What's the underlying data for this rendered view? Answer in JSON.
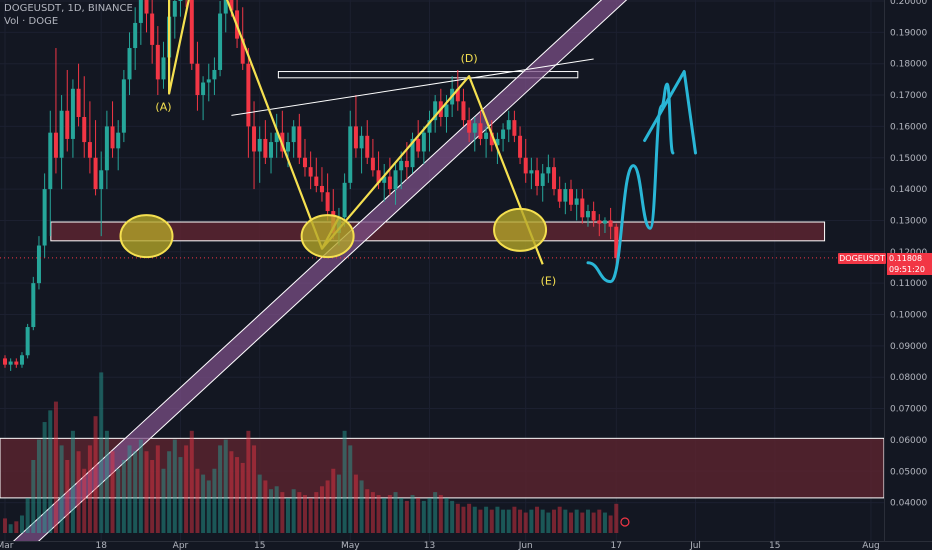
{
  "header": {
    "symbol_line": "DOGEUSDT, 1D, BINANCE",
    "volume_line": "Vol · DOGE"
  },
  "price_axis": {
    "symbol_tag": "DOGEUSDT",
    "last_price": "0.11808",
    "countdown": "09:51:20"
  },
  "colors": {
    "background": "#131722",
    "up": "#26a69a",
    "down": "#f23645",
    "support_zone": "#5c2430",
    "channel": "#7b4f86",
    "pattern_line": "#f5e050",
    "projection": "#29b6d6"
  },
  "chart_data": {
    "type": "candlestick",
    "ylim": [
      0.035,
      0.2005
    ],
    "y_tick_labels": [
      "0.20000",
      "0.19000",
      "0.18000",
      "0.17000",
      "0.16000",
      "0.15000",
      "0.14000",
      "0.13000",
      "0.12000",
      "0.11000",
      "0.10000",
      "0.09000",
      "0.08000",
      "0.07000",
      "0.06000",
      "0.05000",
      "0.04000"
    ],
    "y_ticks": [
      0.2,
      0.19,
      0.18,
      0.17,
      0.16,
      0.15,
      0.14,
      0.13,
      0.12,
      0.11,
      0.1,
      0.09,
      0.08,
      0.07,
      0.06,
      0.05,
      0.04
    ],
    "x_tick_labels": [
      "Mar",
      "18",
      "Apr",
      "15",
      "May",
      "13",
      "Jun",
      "17",
      "Jul",
      "15",
      "Aug"
    ],
    "x_ticks_day": [
      0,
      17,
      31,
      45,
      61,
      75,
      92,
      108,
      122,
      136,
      153
    ],
    "last_day": 109,
    "ohlc": [
      [
        0.086,
        0.087,
        0.083,
        0.084
      ],
      [
        0.084,
        0.086,
        0.082,
        0.085
      ],
      [
        0.085,
        0.086,
        0.083,
        0.084
      ],
      [
        0.084,
        0.088,
        0.083,
        0.087
      ],
      [
        0.087,
        0.097,
        0.086,
        0.096
      ],
      [
        0.096,
        0.112,
        0.095,
        0.11
      ],
      [
        0.11,
        0.125,
        0.108,
        0.122
      ],
      [
        0.122,
        0.145,
        0.118,
        0.14
      ],
      [
        0.14,
        0.165,
        0.125,
        0.158
      ],
      [
        0.158,
        0.185,
        0.145,
        0.15
      ],
      [
        0.15,
        0.17,
        0.14,
        0.165
      ],
      [
        0.165,
        0.178,
        0.152,
        0.156
      ],
      [
        0.156,
        0.175,
        0.15,
        0.172
      ],
      [
        0.172,
        0.18,
        0.16,
        0.163
      ],
      [
        0.163,
        0.176,
        0.15,
        0.155
      ],
      [
        0.155,
        0.168,
        0.145,
        0.15
      ],
      [
        0.15,
        0.162,
        0.138,
        0.14
      ],
      [
        0.14,
        0.152,
        0.125,
        0.146
      ],
      [
        0.146,
        0.165,
        0.14,
        0.16
      ],
      [
        0.16,
        0.168,
        0.15,
        0.153
      ],
      [
        0.153,
        0.162,
        0.146,
        0.158
      ],
      [
        0.158,
        0.178,
        0.155,
        0.175
      ],
      [
        0.175,
        0.19,
        0.17,
        0.185
      ],
      [
        0.185,
        0.198,
        0.178,
        0.193
      ],
      [
        0.193,
        0.205,
        0.186,
        0.203
      ],
      [
        0.203,
        0.21,
        0.19,
        0.196
      ],
      [
        0.196,
        0.203,
        0.18,
        0.186
      ],
      [
        0.186,
        0.192,
        0.17,
        0.175
      ],
      [
        0.175,
        0.187,
        0.172,
        0.182
      ],
      [
        0.182,
        0.198,
        0.178,
        0.195
      ],
      [
        0.195,
        0.205,
        0.188,
        0.2
      ],
      [
        0.2,
        0.21,
        0.195,
        0.206
      ],
      [
        0.206,
        0.212,
        0.198,
        0.202
      ],
      [
        0.202,
        0.208,
        0.178,
        0.18
      ],
      [
        0.18,
        0.187,
        0.165,
        0.17
      ],
      [
        0.17,
        0.176,
        0.162,
        0.174
      ],
      [
        0.174,
        0.18,
        0.168,
        0.175
      ],
      [
        0.175,
        0.182,
        0.17,
        0.178
      ],
      [
        0.178,
        0.2,
        0.176,
        0.196
      ],
      [
        0.196,
        0.21,
        0.19,
        0.204
      ],
      [
        0.204,
        0.212,
        0.195,
        0.197
      ],
      [
        0.197,
        0.205,
        0.185,
        0.188
      ],
      [
        0.188,
        0.198,
        0.178,
        0.18
      ],
      [
        0.18,
        0.185,
        0.15,
        0.16
      ],
      [
        0.16,
        0.168,
        0.14,
        0.152
      ],
      [
        0.152,
        0.16,
        0.142,
        0.156
      ],
      [
        0.156,
        0.162,
        0.148,
        0.15
      ],
      [
        0.15,
        0.158,
        0.145,
        0.155
      ],
      [
        0.155,
        0.164,
        0.15,
        0.158
      ],
      [
        0.158,
        0.165,
        0.15,
        0.152
      ],
      [
        0.152,
        0.158,
        0.147,
        0.155
      ],
      [
        0.155,
        0.162,
        0.15,
        0.16
      ],
      [
        0.16,
        0.164,
        0.148,
        0.15
      ],
      [
        0.15,
        0.156,
        0.144,
        0.147
      ],
      [
        0.147,
        0.152,
        0.14,
        0.144
      ],
      [
        0.144,
        0.15,
        0.139,
        0.141
      ],
      [
        0.141,
        0.147,
        0.136,
        0.139
      ],
      [
        0.139,
        0.145,
        0.13,
        0.133
      ],
      [
        0.133,
        0.14,
        0.124,
        0.126
      ],
      [
        0.126,
        0.134,
        0.122,
        0.131
      ],
      [
        0.131,
        0.145,
        0.128,
        0.142
      ],
      [
        0.142,
        0.165,
        0.14,
        0.16
      ],
      [
        0.16,
        0.17,
        0.15,
        0.153
      ],
      [
        0.153,
        0.16,
        0.145,
        0.157
      ],
      [
        0.157,
        0.162,
        0.148,
        0.15
      ],
      [
        0.15,
        0.156,
        0.144,
        0.146
      ],
      [
        0.146,
        0.152,
        0.14,
        0.142
      ],
      [
        0.142,
        0.148,
        0.136,
        0.144
      ],
      [
        0.144,
        0.15,
        0.138,
        0.14
      ],
      [
        0.14,
        0.148,
        0.135,
        0.146
      ],
      [
        0.146,
        0.152,
        0.14,
        0.149
      ],
      [
        0.149,
        0.155,
        0.143,
        0.147
      ],
      [
        0.147,
        0.158,
        0.145,
        0.156
      ],
      [
        0.156,
        0.162,
        0.15,
        0.152
      ],
      [
        0.152,
        0.16,
        0.148,
        0.158
      ],
      [
        0.158,
        0.165,
        0.152,
        0.162
      ],
      [
        0.162,
        0.17,
        0.158,
        0.168
      ],
      [
        0.168,
        0.172,
        0.16,
        0.163
      ],
      [
        0.163,
        0.17,
        0.158,
        0.167
      ],
      [
        0.167,
        0.176,
        0.163,
        0.172
      ],
      [
        0.172,
        0.178,
        0.165,
        0.168
      ],
      [
        0.168,
        0.172,
        0.16,
        0.162
      ],
      [
        0.162,
        0.166,
        0.155,
        0.158
      ],
      [
        0.158,
        0.163,
        0.152,
        0.161
      ],
      [
        0.161,
        0.165,
        0.154,
        0.156
      ],
      [
        0.156,
        0.16,
        0.15,
        0.158
      ],
      [
        0.158,
        0.162,
        0.152,
        0.154
      ],
      [
        0.154,
        0.158,
        0.148,
        0.156
      ],
      [
        0.156,
        0.161,
        0.152,
        0.159
      ],
      [
        0.159,
        0.165,
        0.155,
        0.162
      ],
      [
        0.162,
        0.165,
        0.155,
        0.157
      ],
      [
        0.157,
        0.16,
        0.148,
        0.15
      ],
      [
        0.15,
        0.156,
        0.142,
        0.145
      ],
      [
        0.145,
        0.15,
        0.14,
        0.146
      ],
      [
        0.146,
        0.15,
        0.138,
        0.141
      ],
      [
        0.141,
        0.148,
        0.136,
        0.145
      ],
      [
        0.145,
        0.151,
        0.142,
        0.147
      ],
      [
        0.147,
        0.15,
        0.138,
        0.14
      ],
      [
        0.14,
        0.144,
        0.134,
        0.136
      ],
      [
        0.136,
        0.142,
        0.132,
        0.14
      ],
      [
        0.14,
        0.143,
        0.133,
        0.135
      ],
      [
        0.135,
        0.14,
        0.13,
        0.137
      ],
      [
        0.137,
        0.14,
        0.129,
        0.131
      ],
      [
        0.131,
        0.135,
        0.128,
        0.133
      ],
      [
        0.133,
        0.136,
        0.128,
        0.13
      ],
      [
        0.13,
        0.132,
        0.125,
        0.129
      ],
      [
        0.129,
        0.131,
        0.126,
        0.13
      ],
      [
        0.13,
        0.134,
        0.124,
        0.128
      ],
      [
        0.128,
        0.129,
        0.115,
        0.118
      ]
    ],
    "volume": [
      0.05,
      0.03,
      0.04,
      0.06,
      0.12,
      0.25,
      0.32,
      0.38,
      0.42,
      0.45,
      0.3,
      0.25,
      0.35,
      0.28,
      0.22,
      0.3,
      0.4,
      0.55,
      0.35,
      0.28,
      0.22,
      0.25,
      0.3,
      0.28,
      0.32,
      0.28,
      0.25,
      0.3,
      0.22,
      0.28,
      0.32,
      0.26,
      0.3,
      0.35,
      0.22,
      0.2,
      0.18,
      0.22,
      0.3,
      0.32,
      0.28,
      0.26,
      0.24,
      0.35,
      0.3,
      0.2,
      0.18,
      0.15,
      0.16,
      0.14,
      0.12,
      0.15,
      0.14,
      0.13,
      0.12,
      0.14,
      0.16,
      0.18,
      0.22,
      0.2,
      0.35,
      0.3,
      0.2,
      0.18,
      0.15,
      0.14,
      0.13,
      0.12,
      0.13,
      0.14,
      0.12,
      0.11,
      0.13,
      0.12,
      0.11,
      0.12,
      0.14,
      0.13,
      0.12,
      0.11,
      0.1,
      0.09,
      0.1,
      0.09,
      0.08,
      0.09,
      0.08,
      0.09,
      0.08,
      0.08,
      0.09,
      0.08,
      0.07,
      0.08,
      0.09,
      0.08,
      0.07,
      0.08,
      0.09,
      0.08,
      0.07,
      0.08,
      0.07,
      0.08,
      0.07,
      0.08,
      0.07,
      0.06,
      0.1
    ],
    "annotations": {
      "support_zone": [
        0.1235,
        0.1295
      ],
      "volume_zone": [
        0.0415,
        0.0605
      ],
      "resistance_box": [
        0.1755,
        0.1775
      ],
      "labels": [
        {
          "text": "(A)",
          "day": 28,
          "y": 0.165
        },
        {
          "text": "(D)",
          "day": 82,
          "y": 0.1805
        },
        {
          "text": "(E)",
          "day": 96,
          "y": 0.1095
        }
      ],
      "pattern_path": [
        [
          29,
          0.211
        ],
        [
          29,
          0.1705
        ],
        [
          33,
          0.205
        ],
        [
          37,
          0.211
        ],
        [
          56,
          0.121
        ],
        [
          82,
          0.176
        ],
        [
          95,
          0.116
        ]
      ],
      "pattern_path_2": [
        [
          56,
          0.121
        ],
        [
          59,
          0.131
        ]
      ],
      "trend_line": [
        [
          40,
          0.1635
        ],
        [
          104,
          0.1815
        ]
      ],
      "channel": [
        [
          0,
          0.0215
        ],
        [
          114,
          0.211
        ]
      ],
      "circles": [
        [
          25,
          0.125
        ],
        [
          57,
          0.125
        ],
        [
          91,
          0.127
        ]
      ],
      "projection": [
        [
          103,
          0.1165
        ],
        [
          107,
          0.1105
        ],
        [
          111,
          0.1475
        ],
        [
          114,
          0.1275
        ],
        [
          116,
          0.1665
        ],
        [
          117,
          0.1735
        ],
        [
          118,
          0.1515
        ]
      ],
      "projection_arrow": [
        [
          113,
          0.1555
        ],
        [
          120,
          0.1775
        ],
        [
          122,
          0.1515
        ]
      ]
    }
  }
}
